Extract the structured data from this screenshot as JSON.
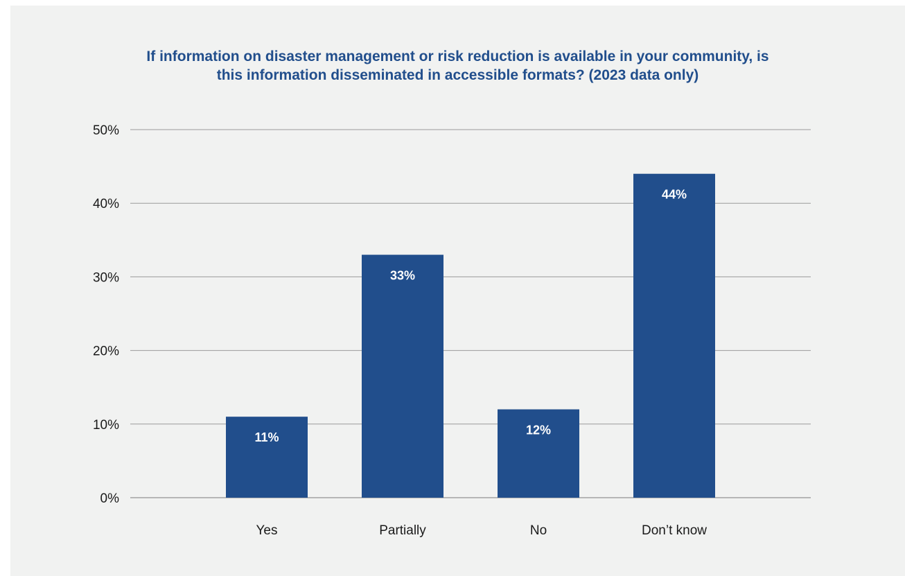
{
  "chart_data": {
    "type": "bar",
    "title_lines": [
      "If information on disaster management or risk reduction is available in your community, is",
      "this information disseminated in accessible formats? (2023 data only)"
    ],
    "categories": [
      "Yes",
      "Partially",
      "No",
      "Don’t know"
    ],
    "values": [
      11,
      33,
      12,
      44
    ],
    "value_labels": [
      "11%",
      "33%",
      "12%",
      "44%"
    ],
    "ylim": [
      0,
      50
    ],
    "yticks": [
      0,
      10,
      20,
      30,
      40,
      50
    ],
    "ytick_labels": [
      "0%",
      "10%",
      "20%",
      "30%",
      "40%",
      "50%"
    ],
    "xlabel": "",
    "ylabel": "",
    "grid": true,
    "legend": "none",
    "bar_color": "#214e8c",
    "title_color": "#214e8c",
    "background_color": "#f1f2f1"
  }
}
